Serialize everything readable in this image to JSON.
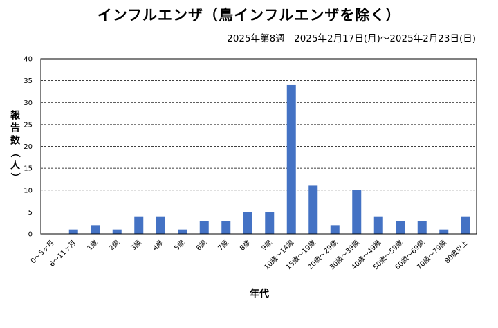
{
  "chart_data": {
    "type": "bar",
    "title": "インフルエンザ（鳥インフルエンザを除く）",
    "subtitle": "2025年第8週　2025年2月17日(月)〜2025年2月23日(日)",
    "xlabel": "年代",
    "ylabel": "報告数（人）",
    "ylim": [
      0,
      40
    ],
    "yticks": [
      0,
      5,
      10,
      15,
      20,
      25,
      30,
      35,
      40
    ],
    "grid": true,
    "legend": "none",
    "bar_color": "#4472c4",
    "categories": [
      "0〜5ヶ月",
      "6〜11ヶ月",
      "1歳",
      "2歳",
      "3歳",
      "4歳",
      "5歳",
      "6歳",
      "7歳",
      "8歳",
      "9歳",
      "10歳〜14歳",
      "15歳〜19歳",
      "20歳〜29歳",
      "30歳〜39歳",
      "40歳〜49歳",
      "50歳〜59歳",
      "60歳〜69歳",
      "70歳〜79歳",
      "80歳以上"
    ],
    "values": [
      0,
      1,
      2,
      1,
      4,
      4,
      1,
      3,
      3,
      5,
      5,
      34,
      11,
      2,
      10,
      4,
      3,
      3,
      1,
      4
    ]
  }
}
